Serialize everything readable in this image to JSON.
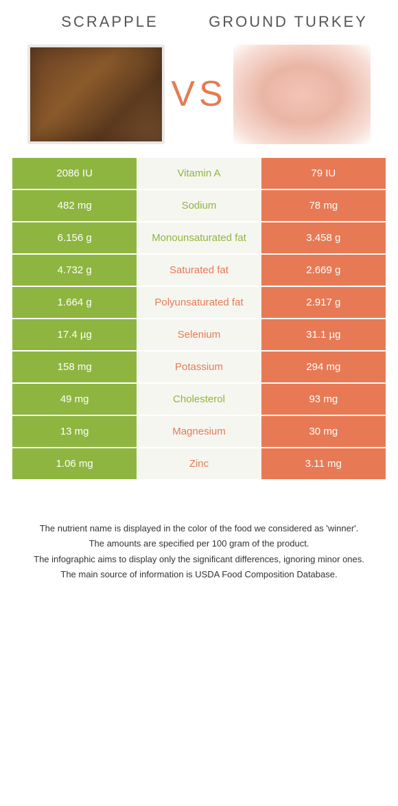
{
  "header": {
    "left_title": "SCRAPPLE",
    "right_title": "GROUND TURKEY",
    "vs_label": "VS"
  },
  "colors": {
    "left_bg": "#8eb53f",
    "right_bg": "#e77a55",
    "mid_bg": "#f6f6f0",
    "green_text": "#8eb53f",
    "orange_text": "#e77a55",
    "header_text": "#555555"
  },
  "rows": [
    {
      "left": "2086 IU",
      "label": "Vitamin A",
      "right": "79 IU",
      "winner": "green"
    },
    {
      "left": "482 mg",
      "label": "Sodium",
      "right": "78 mg",
      "winner": "green"
    },
    {
      "left": "6.156 g",
      "label": "Monounsaturated fat",
      "right": "3.458 g",
      "winner": "green"
    },
    {
      "left": "4.732 g",
      "label": "Saturated fat",
      "right": "2.669 g",
      "winner": "orange"
    },
    {
      "left": "1.664 g",
      "label": "Polyunsaturated fat",
      "right": "2.917 g",
      "winner": "orange"
    },
    {
      "left": "17.4 µg",
      "label": "Selenium",
      "right": "31.1 µg",
      "winner": "orange"
    },
    {
      "left": "158 mg",
      "label": "Potassium",
      "right": "294 mg",
      "winner": "orange"
    },
    {
      "left": "49 mg",
      "label": "Cholesterol",
      "right": "93 mg",
      "winner": "green"
    },
    {
      "left": "13 mg",
      "label": "Magnesium",
      "right": "30 mg",
      "winner": "orange"
    },
    {
      "left": "1.06 mg",
      "label": "Zinc",
      "right": "3.11 mg",
      "winner": "orange"
    }
  ],
  "footnotes": [
    "The nutrient name is displayed in the color of the food we considered as 'winner'.",
    "The amounts are specified per 100 gram of the product.",
    "The infographic aims to display only the significant differences, ignoring minor ones.",
    "The main source of information is USDA Food Composition Database."
  ]
}
